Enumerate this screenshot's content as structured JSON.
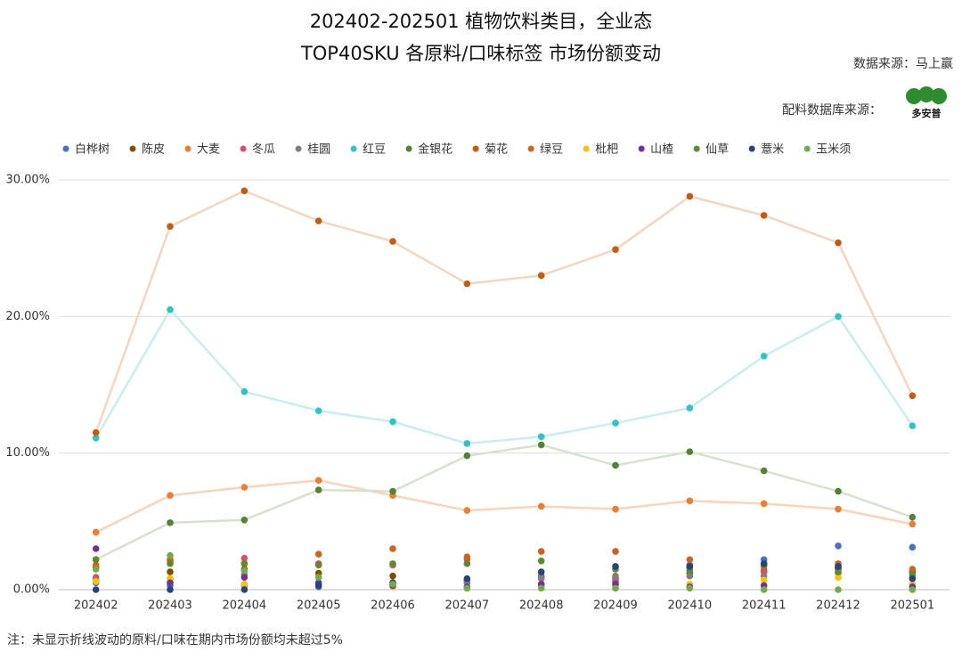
{
  "chart_data": {
    "type": "line",
    "title": "202402-202501 植物饮料类目，全业态",
    "subtitle": "TOP40SKU 各原料/口味标签 市场份额变动",
    "source": "数据来源：马上赢",
    "ingredient_source": "配料数据库来源：",
    "logo_text": "多安普",
    "note": "注：未显示折线波动的原料/口味在期内市场份额均未超过5%",
    "categories": [
      "202402",
      "202403",
      "202404",
      "202405",
      "202406",
      "202407",
      "202408",
      "202409",
      "202410",
      "202411",
      "202412",
      "202501"
    ],
    "ylim": [
      0,
      30
    ],
    "yticks": [
      {
        "value": 0,
        "label": "0.00%"
      },
      {
        "value": 10,
        "label": "10.00%"
      },
      {
        "value": 20,
        "label": "20.00%"
      },
      {
        "value": 30,
        "label": "30.00%"
      }
    ],
    "grid": true,
    "legend": "top",
    "series": [
      {
        "name": "白桦树",
        "color": "#4472c4",
        "values": [
          0.5,
          0.3,
          0.3,
          0.2,
          0.3,
          0.5,
          0.3,
          0.6,
          1.8,
          2.2,
          3.2,
          3.1
        ]
      },
      {
        "name": "陈皮",
        "color": "#7f4f00",
        "values": [
          1.6,
          1.3,
          1.5,
          1.2,
          1.0,
          0.7,
          1.0,
          0.9,
          1.2,
          1.4,
          1.5,
          1.3
        ]
      },
      {
        "name": "大麦",
        "color": "#ed7d31",
        "line_color": "#fbd3b6",
        "values": [
          4.2,
          6.9,
          7.5,
          8.0,
          6.9,
          5.8,
          6.1,
          5.9,
          6.5,
          6.3,
          5.9,
          4.8
        ]
      },
      {
        "name": "冬瓜",
        "color": "#e04a6a",
        "values": [
          0.9,
          2.2,
          2.3,
          1.9,
          1.8,
          2.2,
          0.8,
          0.8,
          1.6,
          1.3,
          1.7,
          0.9
        ]
      },
      {
        "name": "桂圆",
        "color": "#7f7f7f",
        "values": [
          0.7,
          0.8,
          1.1,
          0.9,
          0.5,
          0.6,
          0.9,
          1.0,
          1.0,
          1.0,
          1.2,
          0.8
        ]
      },
      {
        "name": "红豆",
        "color": "#2ec4c4",
        "line_color": "#c8eeee",
        "values": [
          11.1,
          20.5,
          14.5,
          13.1,
          12.3,
          10.7,
          11.2,
          12.2,
          13.3,
          17.1,
          20.0,
          12.0
        ]
      },
      {
        "name": "金银花",
        "color": "#548235",
        "line_color": "#d7e2cd",
        "values": [
          2.2,
          4.9,
          5.1,
          7.3,
          7.2,
          9.8,
          10.6,
          9.1,
          10.1,
          8.7,
          7.2,
          5.3
        ]
      },
      {
        "name": "菊花",
        "color": "#c55a11",
        "line_color": "#f6d5c0",
        "values": [
          11.5,
          26.6,
          29.2,
          27.0,
          25.5,
          22.4,
          23.0,
          24.9,
          28.8,
          27.4,
          25.4,
          14.2
        ]
      },
      {
        "name": "绿豆",
        "color": "#d0621a",
        "values": [
          1.8,
          2.1,
          1.9,
          2.6,
          3.0,
          2.4,
          2.8,
          2.8,
          2.2,
          1.7,
          1.9,
          1.5
        ]
      },
      {
        "name": "枇杷",
        "color": "#ffc000",
        "values": [
          0.6,
          0.8,
          0.4,
          0.3,
          0.2,
          0.1,
          0.2,
          0.3,
          0.4,
          0.7,
          0.9,
          0.4
        ]
      },
      {
        "name": "山楂",
        "color": "#7030a0",
        "values": [
          3.0,
          0.5,
          0.9,
          0.5,
          0.3,
          0.2,
          0.4,
          0.4,
          0.2,
          0.3,
          1.6,
          0.2
        ]
      },
      {
        "name": "仙草",
        "color": "#5b8c2a",
        "values": [
          2.2,
          1.9,
          1.9,
          1.8,
          1.9,
          1.9,
          2.1,
          1.5,
          1.4,
          1.8,
          1.3,
          1.1
        ]
      },
      {
        "name": "薏米",
        "color": "#264478",
        "values": [
          0.0,
          0.0,
          0.0,
          0.3,
          0.5,
          0.8,
          1.3,
          1.7,
          1.7,
          1.9,
          1.7,
          0.8
        ]
      },
      {
        "name": "玉米须",
        "color": "#70ad47",
        "values": [
          1.5,
          2.5,
          1.4,
          0.9,
          0.4,
          0.1,
          0.1,
          0.1,
          0.1,
          0.0,
          0.0,
          0.0
        ]
      }
    ]
  }
}
